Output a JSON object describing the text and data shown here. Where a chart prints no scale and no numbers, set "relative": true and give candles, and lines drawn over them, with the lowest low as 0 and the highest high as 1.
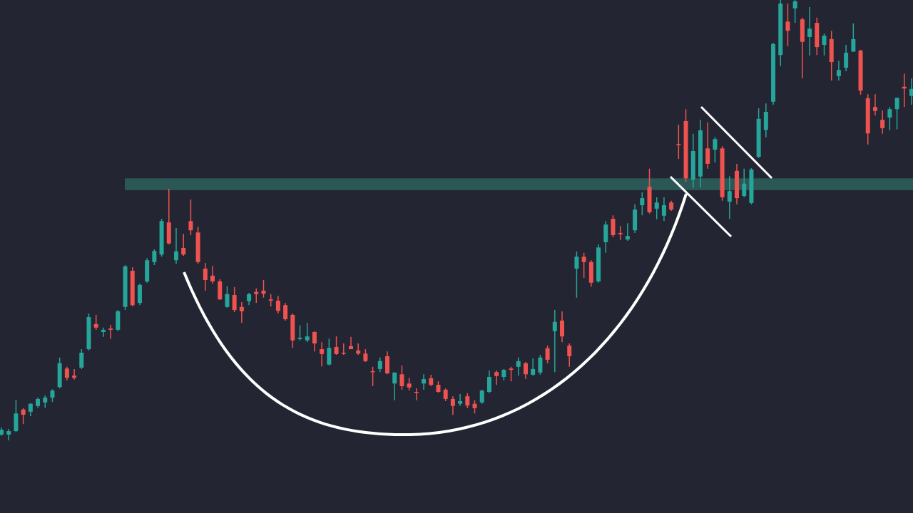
{
  "chart_data": {
    "type": "candlestick",
    "relative": true,
    "categories": [
      null,
      null,
      null,
      null,
      null,
      null,
      null,
      null,
      null,
      null,
      null,
      null,
      null,
      null,
      null,
      null,
      null,
      null,
      null,
      null,
      null,
      null,
      null,
      null,
      null,
      null,
      null,
      null,
      null,
      null,
      null,
      null,
      null,
      null,
      null,
      null,
      null,
      null,
      null,
      null,
      null,
      null,
      null,
      null,
      null,
      null,
      null,
      null,
      null,
      null,
      null,
      null,
      null,
      null,
      null,
      null,
      null,
      null,
      null,
      null,
      null,
      null,
      null,
      null,
      null,
      null,
      null,
      null,
      null,
      null,
      null,
      null,
      null,
      null,
      null,
      null,
      null,
      null,
      null,
      null,
      null,
      null,
      null,
      null,
      null,
      null,
      null,
      null,
      null,
      null,
      null,
      null,
      null,
      null,
      null,
      null,
      null,
      null,
      null,
      null,
      null,
      null,
      null,
      null,
      null,
      null,
      null,
      null,
      null,
      null,
      null,
      null,
      null,
      null,
      null,
      null,
      null,
      null,
      null,
      null,
      null,
      null,
      null,
      null,
      null,
      null
    ],
    "ohlc": [
      [
        0.013,
        0.029,
        0.01,
        0.024
      ],
      [
        0.013,
        0.026,
        0,
        0.021
      ],
      [
        0.021,
        0.092,
        0.019,
        0.061
      ],
      [
        0.07,
        0.073,
        0.037,
        0.058
      ],
      [
        0.065,
        0.084,
        0.055,
        0.083
      ],
      [
        0.078,
        0.097,
        0.074,
        0.094
      ],
      [
        0.086,
        0.102,
        0.074,
        0.097
      ],
      [
        0.097,
        0.116,
        0.087,
        0.113
      ],
      [
        0.121,
        0.188,
        0.118,
        0.175
      ],
      [
        0.163,
        0.167,
        0.136,
        0.142
      ],
      [
        0.147,
        0.162,
        0.138,
        0.142
      ],
      [
        0.165,
        0.207,
        0.162,
        0.199
      ],
      [
        0.207,
        0.288,
        0.204,
        0.28
      ],
      [
        0.264,
        0.285,
        0.251,
        0.256
      ],
      [
        0.246,
        0.256,
        0.235,
        0.251
      ],
      [
        0.254,
        0.262,
        0.23,
        0.251
      ],
      [
        0.251,
        0.296,
        0.248,
        0.293
      ],
      [
        0.303,
        0.398,
        0.296,
        0.395
      ],
      [
        0.385,
        0.393,
        0.304,
        0.307
      ],
      [
        0.312,
        0.356,
        0.307,
        0.353
      ],
      [
        0.361,
        0.414,
        0.358,
        0.409
      ],
      [
        0.405,
        0.434,
        0.398,
        0.43
      ],
      [
        0.422,
        0.503,
        0.417,
        0.498
      ],
      [
        0.495,
        0.571,
        0.445,
        0.447
      ],
      [
        0.409,
        0.482,
        0.401,
        0.429
      ],
      [
        0.437,
        0.469,
        0.419,
        0.422
      ],
      [
        0.498,
        0.547,
        0.466,
        0.477
      ],
      [
        0.472,
        0.485,
        0.401,
        0.405
      ],
      [
        0.39,
        0.403,
        0.34,
        0.364
      ],
      [
        0.374,
        0.396,
        0.356,
        0.361
      ],
      [
        0.361,
        0.366,
        0.319,
        0.32
      ],
      [
        0.303,
        0.35,
        0.301,
        0.332
      ],
      [
        0.33,
        0.348,
        0.291,
        0.296
      ],
      [
        0.303,
        0.314,
        0.267,
        0.293
      ],
      [
        0.316,
        0.335,
        0.307,
        0.332
      ],
      [
        0.337,
        0.345,
        0.312,
        0.332
      ],
      [
        0.34,
        0.364,
        0.324,
        0.333
      ],
      [
        0.32,
        0.332,
        0.304,
        0.317
      ],
      [
        0.317,
        0.328,
        0.288,
        0.294
      ],
      [
        0.307,
        0.312,
        0.272,
        0.275
      ],
      [
        0.285,
        0.288,
        0.21,
        0.227
      ],
      [
        0.23,
        0.261,
        0.227,
        0.233
      ],
      [
        0.227,
        0.267,
        0.223,
        0.236
      ],
      [
        0.246,
        0.248,
        0.202,
        0.22
      ],
      [
        0.207,
        0.223,
        0.168,
        0.196
      ],
      [
        0.172,
        0.231,
        0.17,
        0.21
      ],
      [
        0.212,
        0.236,
        0.194,
        0.196
      ],
      [
        0.199,
        0.22,
        0.194,
        0.197
      ],
      [
        0.214,
        0.235,
        0.207,
        0.207
      ],
      [
        0.204,
        0.22,
        0.194,
        0.197
      ],
      [
        0.197,
        0.207,
        0.178,
        0.18
      ],
      [
        0.157,
        0.167,
        0.123,
        0.155
      ],
      [
        0.162,
        0.188,
        0.155,
        0.18
      ],
      [
        0.191,
        0.202,
        0.15,
        0.152
      ],
      [
        0.129,
        0.154,
        0.091,
        0.154
      ],
      [
        0.15,
        0.17,
        0.115,
        0.123
      ],
      [
        0.129,
        0.142,
        0.113,
        0.12
      ],
      [
        0.11,
        0.118,
        0.091,
        0.108
      ],
      [
        0.129,
        0.15,
        0.115,
        0.139
      ],
      [
        0.141,
        0.149,
        0.123,
        0.126
      ],
      [
        0.126,
        0.134,
        0.108,
        0.11
      ],
      [
        0.115,
        0.118,
        0.089,
        0.094
      ],
      [
        0.094,
        0.1,
        0.058,
        0.078
      ],
      [
        0.083,
        0.105,
        0.078,
        0.089
      ],
      [
        0.1,
        0.107,
        0.073,
        0.079
      ],
      [
        0.083,
        0.091,
        0.061,
        0.073
      ],
      [
        0.086,
        0.115,
        0.083,
        0.113
      ],
      [
        0.11,
        0.159,
        0.107,
        0.144
      ],
      [
        0.155,
        0.159,
        0.126,
        0.146
      ],
      [
        0.144,
        0.162,
        0.136,
        0.16
      ],
      [
        0.163,
        0.167,
        0.134,
        0.16
      ],
      [
        0.167,
        0.188,
        0.147,
        0.18
      ],
      [
        0.175,
        0.178,
        0.139,
        0.15
      ],
      [
        0.149,
        0.186,
        0.147,
        0.162
      ],
      [
        0.154,
        0.194,
        0.149,
        0.188
      ],
      [
        0.209,
        0.215,
        0.175,
        0.183
      ],
      [
        0.248,
        0.296,
        0.155,
        0.269
      ],
      [
        0.272,
        0.293,
        0.223,
        0.236
      ],
      [
        0.215,
        0.22,
        0.167,
        0.191
      ],
      [
        0.39,
        0.429,
        0.324,
        0.417
      ],
      [
        0.417,
        0.426,
        0.369,
        0.405
      ],
      [
        0.405,
        0.409,
        0.349,
        0.358
      ],
      [
        0.361,
        0.445,
        0.358,
        0.438
      ],
      [
        0.45,
        0.498,
        0.426,
        0.49
      ],
      [
        0.503,
        0.511,
        0.461,
        0.466
      ],
      [
        0.471,
        0.487,
        0.455,
        0.468
      ],
      [
        0.456,
        0.493,
        0.453,
        0.464
      ],
      [
        0.477,
        0.536,
        0.471,
        0.524
      ],
      [
        0.534,
        0.563,
        0.511,
        0.55
      ],
      [
        0.576,
        0.617,
        0.515,
        0.518
      ],
      [
        0.526,
        0.552,
        0.502,
        0.54
      ],
      [
        0.51,
        0.552,
        0.498,
        0.534
      ],
      [
        0.54,
        0.544,
        0.521,
        0.524
      ],
      [
        0.673,
        0.717,
        0.639,
        0.672
      ],
      [
        0.725,
        0.752,
        0.587,
        0.595
      ],
      [
        0.592,
        0.696,
        0.574,
        0.657
      ],
      [
        0.599,
        0.728,
        0.574,
        0.704
      ],
      [
        0.663,
        0.722,
        0.617,
        0.628
      ],
      [
        0.66,
        0.689,
        0.631,
        0.684
      ],
      [
        0.663,
        0.668,
        0.544,
        0.552
      ],
      [
        0.542,
        0.6,
        0.503,
        0.566
      ],
      [
        0.612,
        0.628,
        0.536,
        0.55
      ],
      [
        0.555,
        0.617,
        0.552,
        0.583
      ],
      [
        0.539,
        0.618,
        0.536,
        0.615
      ],
      [
        0.644,
        0.754,
        0.641,
        0.73
      ],
      [
        0.705,
        0.765,
        0.688,
        0.746
      ],
      [
        0.769,
        0.903,
        0.762,
        0.9
      ],
      [
        0.875,
        1,
        0.85,
        0.992
      ],
      [
        0.951,
        0.992,
        0.895,
        0.93
      ],
      [
        0.981,
        1,
        0.948,
        0.997
      ],
      [
        0.956,
        0.96,
        0.822,
        0.905
      ],
      [
        0.916,
        0.984,
        0.874,
        0.935
      ],
      [
        0.948,
        0.96,
        0.875,
        0.893
      ],
      [
        0.898,
        0.924,
        0.874,
        0.919
      ],
      [
        0.911,
        0.93,
        0.817,
        0.859
      ],
      [
        0.827,
        0.862,
        0.817,
        0.841
      ],
      [
        0.846,
        0.898,
        0.838,
        0.88
      ],
      [
        0.883,
        0.947,
        0.882,
        0.911
      ],
      [
        0.885,
        0.887,
        0.785,
        0.794
      ],
      [
        0.777,
        0.786,
        0.672,
        0.697
      ],
      [
        0.757,
        0.786,
        0.738,
        0.748
      ],
      [
        0.728,
        0.749,
        0.696,
        0.709
      ],
      [
        0.733,
        0.757,
        0.704,
        0.752
      ],
      [
        0.752,
        0.778,
        0.706,
        0.778
      ],
      [
        0.803,
        0.833,
        0.757,
        0.799
      ],
      [
        0.782,
        0.822,
        0.762,
        0.798
      ]
    ],
    "bands": [
      {
        "axis": "y",
        "from": 0.568,
        "to": 0.595,
        "color": "#2b5755"
      }
    ]
  }
}
